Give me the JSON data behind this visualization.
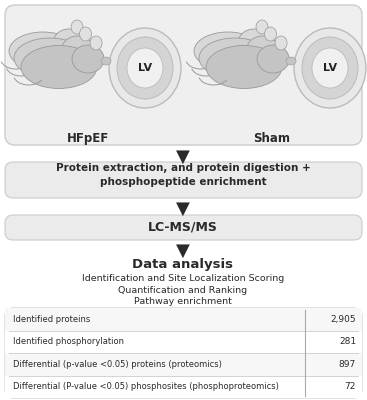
{
  "top_box_color": "#efefef",
  "top_box_edge": "#cccccc",
  "hfpef_label": "HFpEF",
  "sham_label": "Sham",
  "lv_label": "LV",
  "step1_text_line1": "Protein extraction, and protein digestion +",
  "step1_text_line2": "phosphopeptide enrichment",
  "step2_text": "LC-MS/MS",
  "step3_title": "Data analysis",
  "step3_bullets": [
    "Identification and Site Localization Scoring",
    "Quantification and Ranking",
    "Pathway enrichment"
  ],
  "table_rows": [
    [
      "Identified proteins",
      "2,905"
    ],
    [
      "Identified phosphorylation",
      "281"
    ],
    [
      "Differential (p-value <0.05) proteins (proteomics)",
      "897"
    ],
    [
      "Differential (P-value <0.05) phosphosites (phosphoproteomics)",
      "72"
    ]
  ],
  "table_row_colors": [
    "#f7f7f7",
    "#ffffff",
    "#f7f7f7",
    "#ffffff"
  ],
  "flow_box_color": "#ebebeb",
  "flow_box_edge": "#cccccc",
  "arrow_color": "#2a2a2a",
  "text_color": "#2a2a2a",
  "bg_color": "#ffffff",
  "arrow_symbol": "▼"
}
